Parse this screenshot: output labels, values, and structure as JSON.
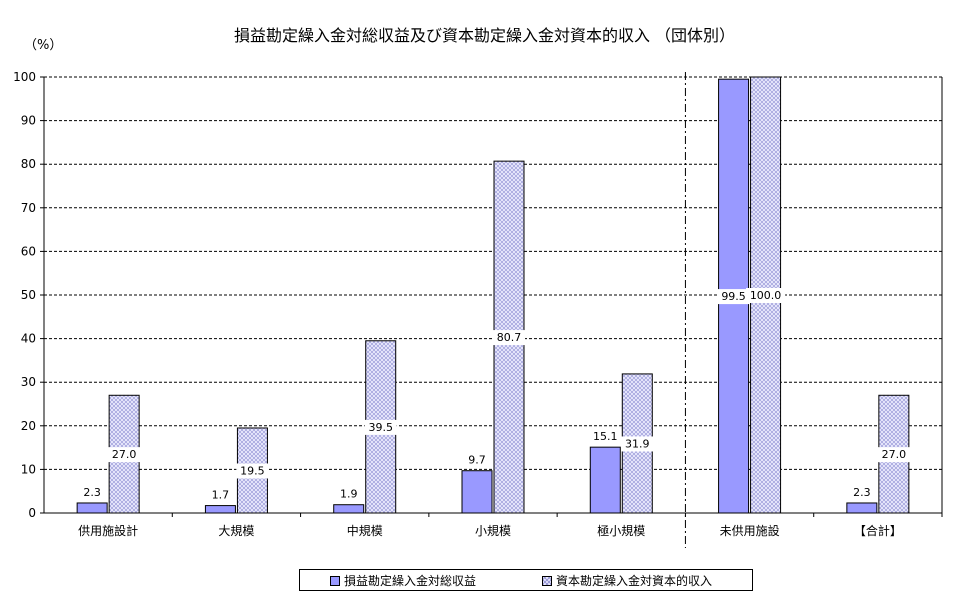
{
  "chart_data": {
    "type": "bar",
    "title": "損益勘定繰入金対総収益及び資本勘定繰入金対資本的収入 （団体別）",
    "ylabel": "（%）",
    "xlabel": "",
    "ylim": [
      0,
      100
    ],
    "y_ticks": [
      0,
      10,
      20,
      30,
      40,
      50,
      60,
      70,
      80,
      90,
      100
    ],
    "grid": "horizontal dashed",
    "legend_position": "bottom",
    "categories": [
      "供用施設計",
      "大規模",
      "中規模",
      "小規模",
      "極小規模",
      "未供用施設",
      "【合計】"
    ],
    "series": [
      {
        "name": "損益勘定繰入金対総収益",
        "color": "#9999ff",
        "values": [
          2.3,
          1.7,
          1.9,
          9.7,
          15.1,
          99.5,
          2.3
        ],
        "labels": [
          "2.3",
          "1.7",
          "1.9",
          "9.7",
          "15.1",
          "99.5",
          "2.3"
        ]
      },
      {
        "name": "資本勘定繰入金対資本的収入",
        "color": "#eeeeff",
        "values": [
          27.0,
          19.5,
          39.5,
          80.7,
          31.9,
          100.0,
          27.0
        ],
        "labels": [
          "27.0",
          "19.5",
          "39.5",
          "80.7",
          "31.9",
          "100.0",
          "27.0"
        ]
      }
    ],
    "separator_after_category": "極小規模"
  }
}
